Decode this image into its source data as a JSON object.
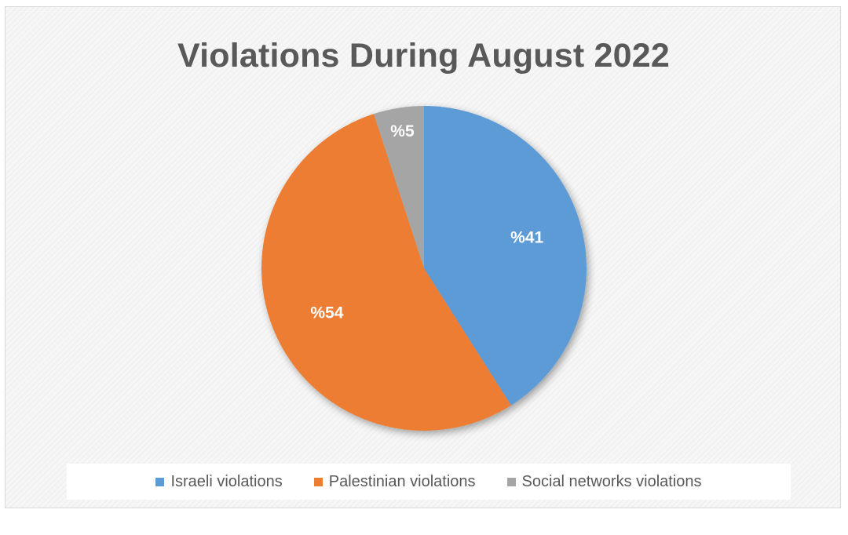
{
  "chart_data": {
    "type": "pie",
    "title": "Violations During August 2022",
    "series": [
      {
        "name": "Israeli violations",
        "value": 41,
        "label": "%41",
        "color": "#5b9bd5"
      },
      {
        "name": "Palestinian violations",
        "value": 54,
        "label": "%54",
        "color": "#ed7d31"
      },
      {
        "name": "Social networks violations",
        "value": 5,
        "label": "%5",
        "color": "#a5a5a5"
      }
    ],
    "legend_position": "bottom",
    "start_angle": "top, clockwise"
  }
}
